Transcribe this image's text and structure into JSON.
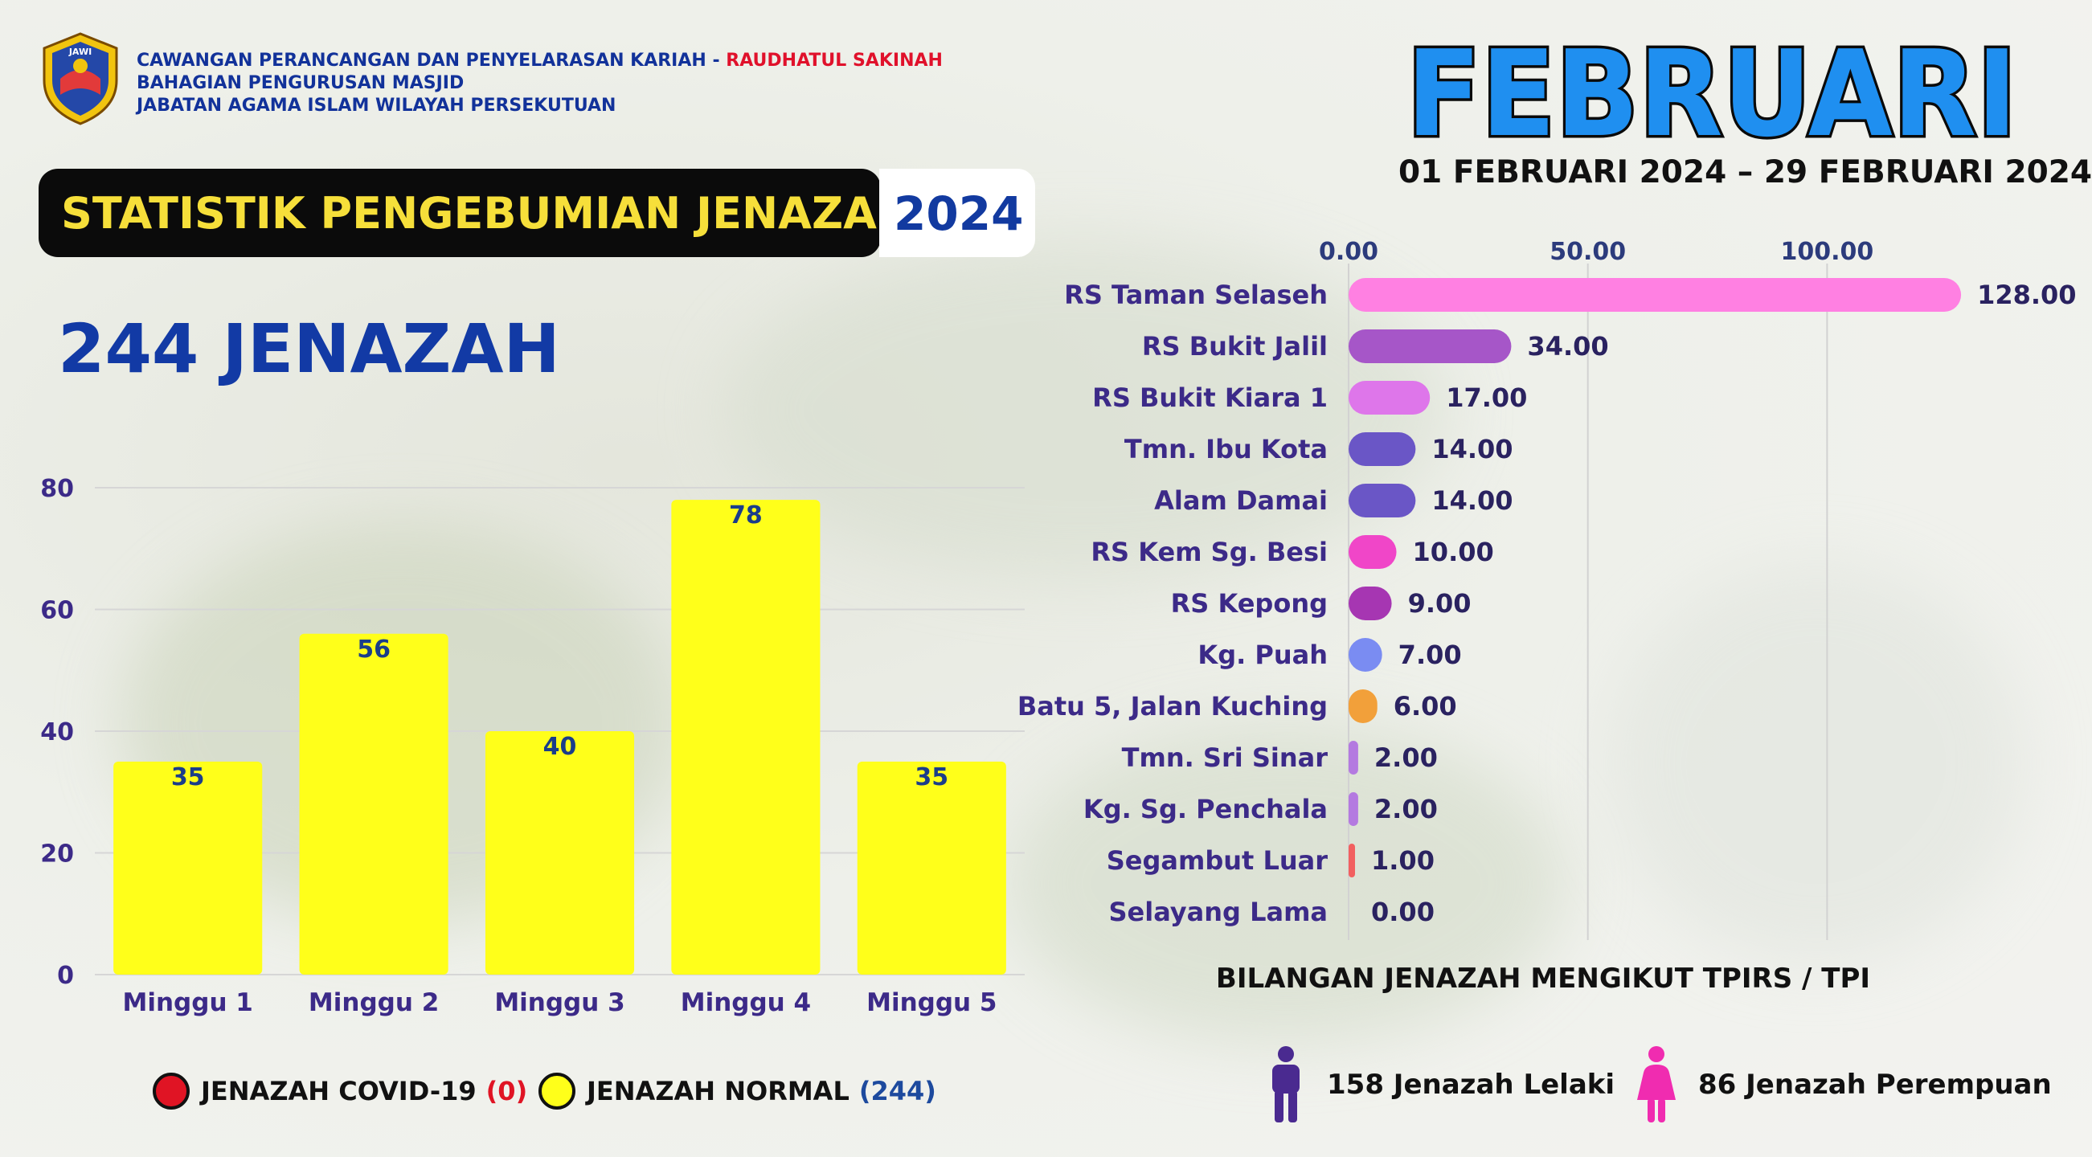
{
  "header": {
    "org_line1_prefix": "CAWANGAN PERANCANGAN DAN PENYELARASAN KARIAH - ",
    "org_line1_highlight": "RAUDHATUL SAKINAH",
    "org_line2": "BAHAGIAN PENGURUSAN MASJID",
    "org_line3": "JABATAN AGAMA ISLAM WILAYAH PERSEKUTUAN",
    "logo_text": "JAWI",
    "title": "STATISTIK PENGEBUMIAN JENAZAH",
    "year": "2024",
    "month": "FEBRUARI",
    "date_range": "01 FEBRUARI 2024 – 29 FEBRUARI 2024"
  },
  "summary": {
    "total_label": "244 JENAZAH"
  },
  "chart_data": [
    {
      "type": "bar",
      "categories": [
        "Minggu 1",
        "Minggu 2",
        "Minggu 3",
        "Minggu 4",
        "Minggu 5"
      ],
      "values": [
        35,
        56,
        40,
        78,
        35
      ],
      "ylim": [
        0,
        80
      ],
      "yticks": [
        0,
        20,
        40,
        60,
        80
      ],
      "bar_color": "#ffff1a",
      "grid": true
    },
    {
      "type": "bar",
      "orientation": "horizontal",
      "title": "BILANGAN JENAZAH MENGIKUT TPIRS / TPI",
      "categories": [
        "RS Taman Selaseh",
        "RS Bukit Jalil",
        "RS Bukit Kiara 1",
        "Tmn. Ibu Kota",
        "Alam Damai",
        "RS Kem Sg. Besi",
        "RS Kepong",
        "Kg. Puah",
        "Batu 5, Jalan Kuching",
        "Tmn. Sri Sinar",
        "Kg. Sg. Penchala",
        "Segambut Luar",
        "Selayang Lama"
      ],
      "values": [
        128,
        34,
        17,
        14,
        14,
        10,
        9,
        7,
        6,
        2,
        2,
        1,
        0
      ],
      "value_labels": [
        "128.00",
        "34.00",
        "17.00",
        "14.00",
        "14.00",
        "10.00",
        "9.00",
        "7.00",
        "6.00",
        "2.00",
        "2.00",
        "1.00",
        "0.00"
      ],
      "xticks": [
        "0.00",
        "50.00",
        "100.00"
      ],
      "xtick_values": [
        0,
        50,
        100
      ],
      "xlim": [
        0,
        130
      ],
      "colors": [
        "#ff80e2",
        "#a656c8",
        "#de76ea",
        "#6a56c6",
        "#6a56c6",
        "#f046c8",
        "#a636b2",
        "#7a8cf2",
        "#f2a03a",
        "#b47ae0",
        "#b47ae0",
        "#f26060",
        "#bbbbbb"
      ],
      "grid": true
    }
  ],
  "legend": {
    "covid_label": "JENAZAH COVID-19",
    "covid_count": "(0)",
    "covid_color": "#e01424",
    "normal_label": "JENAZAH NORMAL",
    "normal_count": "(244)",
    "normal_color": "#ffff1a"
  },
  "gender": {
    "male_label": "158 Jenazah Lelaki",
    "male_icon": "male-person-icon",
    "male_color": "#4a2a90",
    "female_label": "86 Jenazah Perempuan",
    "female_icon": "female-person-icon",
    "female_color": "#f02cb0"
  }
}
